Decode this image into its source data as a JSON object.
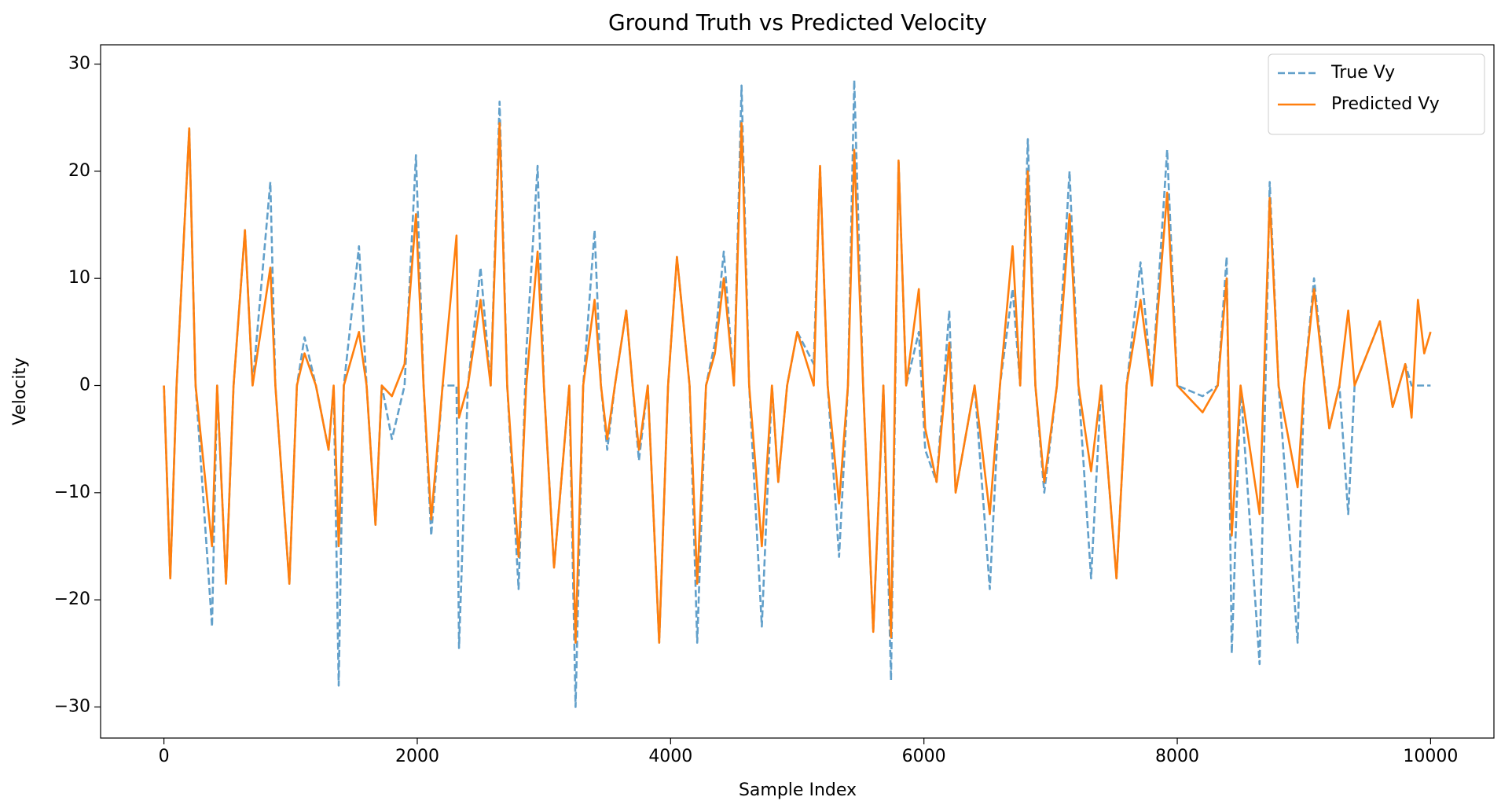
{
  "chart_data": {
    "type": "line",
    "title": "Ground Truth vs Predicted Velocity",
    "x_label": "Sample Index",
    "y_label": "Velocity",
    "xlim": [
      -500,
      10500
    ],
    "ylim": [
      -32.9,
      31.8
    ],
    "xticks": [
      0,
      2000,
      4000,
      6000,
      8000,
      10000
    ],
    "yticks": [
      {
        "value": -30,
        "label": "−30"
      },
      {
        "value": -20,
        "label": "−20"
      },
      {
        "value": -10,
        "label": "−10"
      },
      0,
      10,
      20,
      30
    ],
    "legend": "upper right",
    "x": [
      0,
      50,
      100,
      200,
      250,
      380,
      420,
      490,
      550,
      640,
      700,
      840,
      880,
      990,
      1050,
      1110,
      1200,
      1300,
      1340,
      1380,
      1420,
      1540,
      1600,
      1670,
      1720,
      1800,
      1900,
      1990,
      2050,
      2110,
      2200,
      2310,
      2330,
      2400,
      2500,
      2580,
      2650,
      2710,
      2800,
      2860,
      2950,
      3000,
      3080,
      3200,
      3250,
      3310,
      3400,
      3450,
      3500,
      3560,
      3650,
      3700,
      3750,
      3820,
      3910,
      3980,
      4050,
      4150,
      4210,
      4280,
      4350,
      4420,
      4500,
      4560,
      4620,
      4720,
      4800,
      4850,
      4920,
      5000,
      5130,
      5180,
      5240,
      5330,
      5400,
      5450,
      5520,
      5600,
      5680,
      5740,
      5800,
      5860,
      5960,
      6010,
      6100,
      6200,
      6250,
      6400,
      6520,
      6600,
      6700,
      6760,
      6820,
      6880,
      6950,
      7050,
      7150,
      7220,
      7320,
      7400,
      7520,
      7600,
      7710,
      7800,
      7920,
      8000,
      8200,
      8320,
      8390,
      8430,
      8500,
      8650,
      8730,
      8800,
      8950,
      9000,
      9080,
      9200,
      9280,
      9350,
      9400,
      9600,
      9700,
      9800,
      9850,
      9900,
      9950,
      10000
    ],
    "series": [
      {
        "name": "True Vy",
        "color": "#1f77b4",
        "dash": true,
        "values": [
          0,
          -18,
          0,
          24,
          0,
          -22.5,
          0,
          -18.5,
          0,
          14.5,
          0,
          19,
          0,
          -18.5,
          0,
          4.5,
          0,
          -6,
          0,
          -28,
          0,
          13,
          0,
          -13,
          0,
          -5,
          0,
          21.5,
          0,
          -14,
          0,
          0,
          -24.5,
          0,
          11,
          0,
          26.5,
          0,
          -19,
          3,
          20.5,
          0,
          -17,
          0,
          -30,
          0,
          14.5,
          0,
          -6,
          0,
          7,
          0,
          -7,
          0,
          -24,
          0,
          12,
          0,
          -24,
          0,
          4,
          12.5,
          0,
          28,
          0,
          -22.5,
          0,
          -9,
          0,
          5,
          2,
          20.5,
          0,
          -16,
          0,
          28.5,
          0,
          -23,
          0,
          -27.5,
          21,
          0,
          5,
          -6,
          -9,
          7,
          -10,
          0,
          -19,
          0,
          9,
          0,
          23,
          0,
          -10,
          0,
          20,
          0,
          -18,
          0,
          -18,
          0,
          11.5,
          0,
          22,
          0,
          -1,
          0,
          12,
          -25,
          0,
          -26,
          19,
          0,
          -24,
          0,
          10,
          -4,
          0,
          -12,
          0,
          6,
          -2,
          2,
          0,
          0,
          0,
          0
        ]
      },
      {
        "name": "Predicted Vy",
        "color": "#ff7f0e",
        "dash": false,
        "values": [
          0,
          -18,
          0,
          24,
          0,
          -15,
          0,
          -18.5,
          0,
          14.5,
          0,
          11,
          0,
          -18.5,
          0,
          3,
          0,
          -6,
          0,
          -15,
          0,
          5,
          0,
          -13,
          0,
          -1,
          2,
          16,
          0,
          -12.5,
          0,
          14,
          -3,
          0,
          8,
          0,
          24.5,
          0,
          -16,
          0,
          12.5,
          0,
          -17,
          0,
          -24,
          0,
          8,
          0,
          -5,
          0,
          7,
          0,
          -6,
          0,
          -24,
          0,
          12,
          0,
          -18.5,
          0,
          3,
          10,
          0,
          24.5,
          0,
          -15,
          0,
          -9,
          0,
          5,
          0,
          20.5,
          0,
          -11,
          0,
          22,
          0,
          -23,
          0,
          -23.5,
          21,
          0,
          9,
          -4,
          -9,
          4,
          -10,
          0,
          -12,
          0,
          13,
          0,
          20,
          0,
          -9,
          0,
          16,
          0,
          -8,
          0,
          -18,
          0,
          8,
          0,
          18,
          0,
          -2.5,
          0,
          10,
          -14,
          0,
          -12,
          17.5,
          0,
          -9.5,
          0,
          9,
          -4,
          0,
          7,
          0,
          6,
          -2,
          2,
          -3,
          8,
          3,
          5
        ]
      }
    ]
  }
}
